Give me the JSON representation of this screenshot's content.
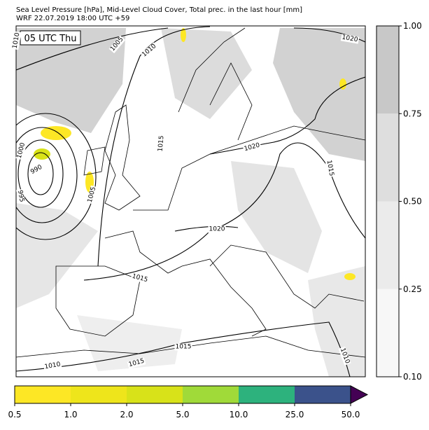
{
  "header": {
    "line1": "Sea Level Pressure [hPa], Mid-Level Cloud Cover, Total prec. in the last hour [mm]",
    "line2": "WRF 22.07.2019 18:00 UTC +59"
  },
  "map": {
    "time_label": "05 UTC Thu",
    "isobar_labels": [
      "1005",
      "1010",
      "1020",
      "1010",
      "1015",
      "1020",
      "1015",
      "1000",
      "990",
      "995",
      "1005",
      "1020",
      "1015",
      "1015",
      "1010",
      "1015",
      "1010"
    ]
  },
  "cloud_colorbar": {
    "ticks": [
      "0.10",
      "0.25",
      "0.50",
      "0.75",
      "1.00"
    ],
    "colors": [
      "#f7f7f7",
      "#ebebeb",
      "#dedede",
      "#c8c8c8"
    ]
  },
  "precip_colorbar": {
    "ticks": [
      "0.5",
      "1.0",
      "2.0",
      "5.0",
      "10.0",
      "25.0",
      "50.0"
    ],
    "colors": [
      "#fde725",
      "#eee51b",
      "#d8e219",
      "#a0da39",
      "#2db27d",
      "#3b528b",
      "#440154"
    ]
  }
}
